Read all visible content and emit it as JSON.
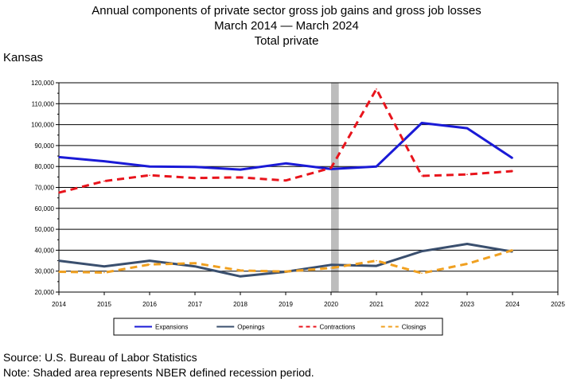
{
  "title": {
    "line1": "Annual components of private sector gross job gains and gross job losses",
    "line2": "March 2014 — March 2024",
    "line3": "Total private"
  },
  "region": "Kansas",
  "footer": {
    "source": "Source: U.S. Bureau of Labor Statistics",
    "note": "Note: Shaded area represents NBER defined recession period."
  },
  "chart_data": {
    "type": "line",
    "x": [
      2014,
      2015,
      2016,
      2017,
      2018,
      2019,
      2020,
      2021,
      2022,
      2023,
      2024
    ],
    "xticks": [
      2014,
      2015,
      2016,
      2017,
      2018,
      2019,
      2020,
      2021,
      2022,
      2023,
      2024,
      2025
    ],
    "xlim": [
      2014,
      2025
    ],
    "ylim": [
      20000,
      120000
    ],
    "yticks": [
      20000,
      30000,
      40000,
      50000,
      60000,
      70000,
      80000,
      90000,
      100000,
      110000,
      120000
    ],
    "ytick_labels": [
      "20,000",
      "30,000",
      "40,000",
      "50,000",
      "60,000",
      "70,000",
      "80,000",
      "90,000",
      "100,000",
      "110,000",
      "120,000"
    ],
    "grid": "horizontal",
    "legend_position": "bottom",
    "recession": [
      2020.0,
      2020.17
    ],
    "series": [
      {
        "name": "Expansions",
        "color": "#1a1ad6",
        "style": "solid",
        "values": [
          84500,
          82500,
          80000,
          79800,
          78500,
          81500,
          78800,
          80000,
          100800,
          98300,
          84000
        ]
      },
      {
        "name": "Openings",
        "color": "#3a4f6e",
        "style": "solid",
        "values": [
          35000,
          32300,
          35000,
          32300,
          27500,
          29700,
          33000,
          32500,
          39500,
          43000,
          39300
        ]
      },
      {
        "name": "Contractions",
        "color": "#e8141c",
        "style": "dashed",
        "values": [
          67500,
          73000,
          75800,
          74500,
          74800,
          73300,
          79300,
          117000,
          75500,
          76200,
          77800
        ]
      },
      {
        "name": "Closings",
        "color": "#f0a020",
        "style": "dashed",
        "values": [
          29700,
          29300,
          33200,
          33800,
          30300,
          29800,
          31500,
          35000,
          29000,
          33500,
          40000
        ]
      }
    ]
  }
}
